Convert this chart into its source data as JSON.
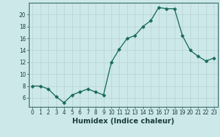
{
  "x": [
    0,
    1,
    2,
    3,
    4,
    5,
    6,
    7,
    8,
    9,
    10,
    11,
    12,
    13,
    14,
    15,
    16,
    17,
    18,
    19,
    20,
    21,
    22,
    23
  ],
  "y": [
    8,
    8,
    7.5,
    6.2,
    5.2,
    6.5,
    7,
    7.5,
    7,
    6.5,
    12,
    14.2,
    16,
    16.5,
    18,
    19,
    21.2,
    21,
    21,
    16.5,
    14,
    13,
    12.2,
    12.7
  ],
  "line_color": "#1a6b5a",
  "marker": "D",
  "marker_size": 2.5,
  "bg_color": "#cce8e8",
  "grid_color": "#b8d4d4",
  "xlabel": "Humidex (Indice chaleur)",
  "xlim": [
    -0.5,
    23.5
  ],
  "ylim": [
    4.5,
    22
  ],
  "yticks": [
    6,
    8,
    10,
    12,
    14,
    16,
    18,
    20
  ],
  "xticks": [
    0,
    1,
    2,
    3,
    4,
    5,
    6,
    7,
    8,
    9,
    10,
    11,
    12,
    13,
    14,
    15,
    16,
    17,
    18,
    19,
    20,
    21,
    22,
    23
  ],
  "tick_fontsize": 5.5,
  "xlabel_fontsize": 7.5
}
